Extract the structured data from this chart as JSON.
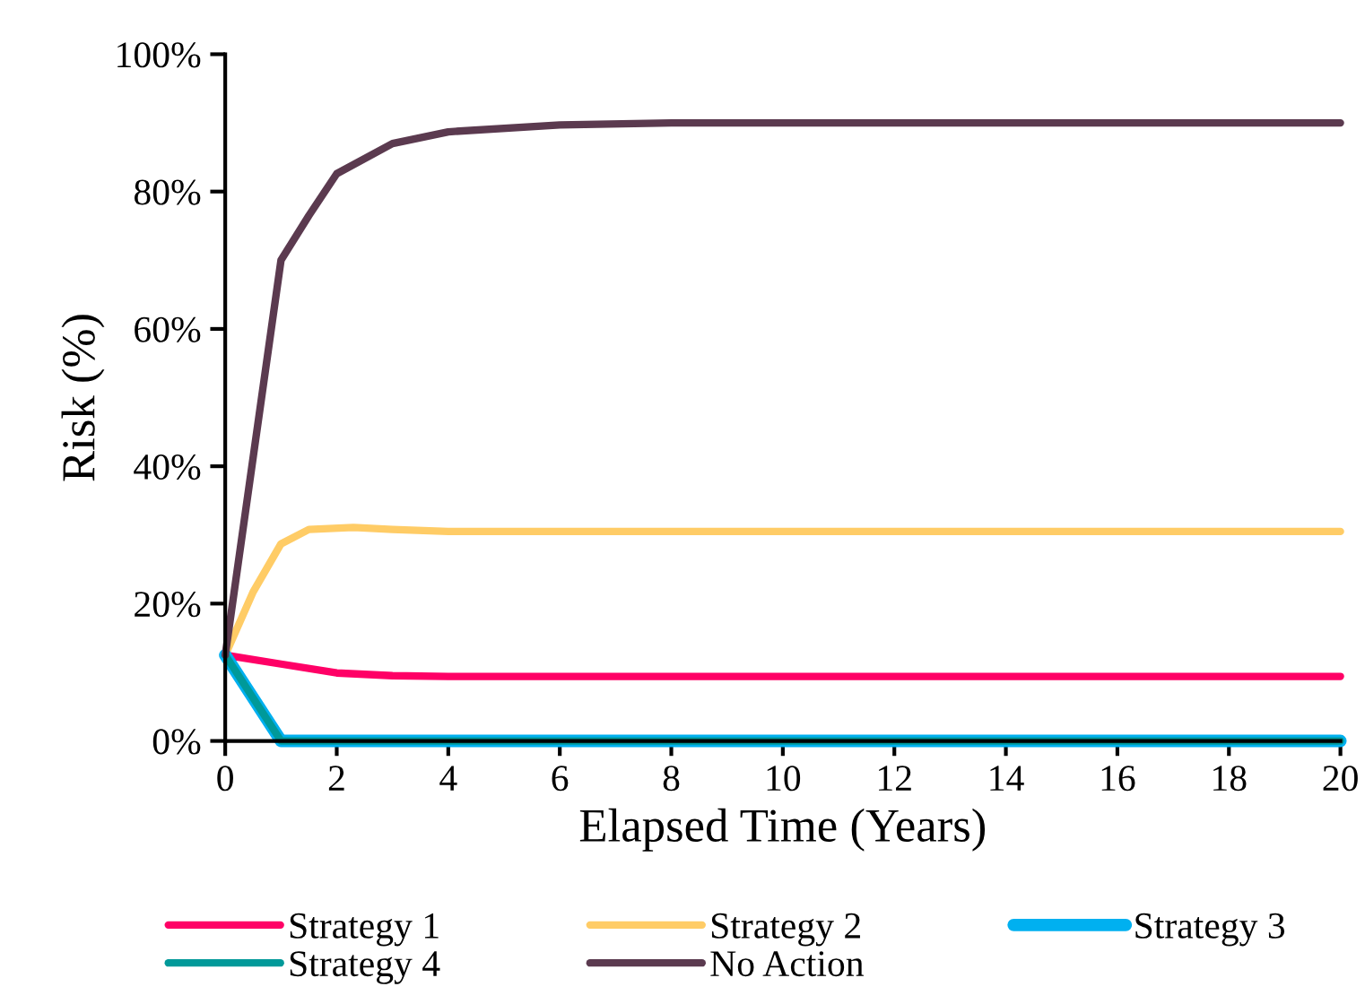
{
  "chart_data": {
    "type": "line",
    "xlabel": "Elapsed Time (Years)",
    "ylabel": "Risk (%)",
    "xlim": [
      0,
      20
    ],
    "xticks": [
      0,
      2,
      4,
      6,
      8,
      10,
      12,
      14,
      16,
      18,
      20
    ],
    "ylim": [
      0,
      100
    ],
    "yticks": [
      {
        "value": 0,
        "label": "0%"
      },
      {
        "value": 20,
        "label": "20%"
      },
      {
        "value": 40,
        "label": "40%"
      },
      {
        "value": 60,
        "label": "60%"
      },
      {
        "value": 80,
        "label": "80%"
      },
      {
        "value": 100,
        "label": "100%"
      }
    ],
    "grid": false,
    "legend": "bottom",
    "marker": "none",
    "line_style": "solid",
    "series": [
      {
        "name": "Strategy 1",
        "color": "#ff0066",
        "x": [
          0,
          1,
          2,
          3,
          4,
          6,
          20
        ],
        "values": [
          12.5,
          11.2,
          9.9,
          9.5,
          9.4,
          9.4,
          9.4
        ]
      },
      {
        "name": "Strategy 2",
        "color": "#ffcc66",
        "x": [
          0,
          0.5,
          1,
          1.5,
          2.3,
          3,
          4,
          6,
          20
        ],
        "values": [
          12.5,
          21.7,
          28.7,
          30.8,
          31.1,
          30.8,
          30.5,
          30.5,
          30.5
        ]
      },
      {
        "name": "Strategy 3",
        "color": "#00b0f0",
        "x": [
          0,
          1,
          20
        ],
        "values": [
          12.5,
          0,
          0
        ]
      },
      {
        "name": "Strategy 4",
        "color": "#009999",
        "x": [
          0,
          1,
          20
        ],
        "values": [
          12.5,
          0,
          0
        ]
      },
      {
        "name": "No Action",
        "color": "#5b3a4f",
        "x": [
          0,
          1,
          1.5,
          2,
          3,
          4,
          6,
          8,
          20
        ],
        "values": [
          12.5,
          70.0,
          76.5,
          82.6,
          87.0,
          88.7,
          89.7,
          90.0,
          90.0
        ]
      }
    ]
  }
}
